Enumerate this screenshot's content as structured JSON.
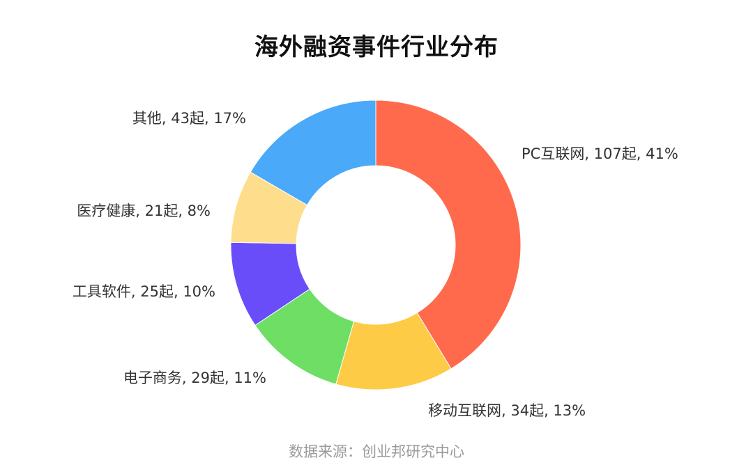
{
  "chart_data": {
    "type": "pie",
    "donut": true,
    "title": "海外融资事件行业分布",
    "source": "数据来源：创业邦研究中心",
    "slices": [
      {
        "name": "PC互联网",
        "count": 107,
        "percent": 41,
        "color": "#FF6A4D",
        "label": "PC互联网, 107起, 41%"
      },
      {
        "name": "移动互联网",
        "count": 34,
        "percent": 13,
        "color": "#FDCB45",
        "label": "移动互联网, 34起, 13%"
      },
      {
        "name": "电子商务",
        "count": 29,
        "percent": 11,
        "color": "#6EDE64",
        "label": "电子商务, 29起, 11%"
      },
      {
        "name": "工具软件",
        "count": 25,
        "percent": 10,
        "color": "#684DF9",
        "label": "工具软件, 25起, 10%"
      },
      {
        "name": "医疗健康",
        "count": 21,
        "percent": 8,
        "color": "#FEDD8C",
        "label": "医疗健康, 21起, 8%"
      },
      {
        "name": "其他",
        "count": 43,
        "percent": 17,
        "color": "#4AA9F8",
        "label": "其他, 43起, 17%"
      }
    ]
  }
}
